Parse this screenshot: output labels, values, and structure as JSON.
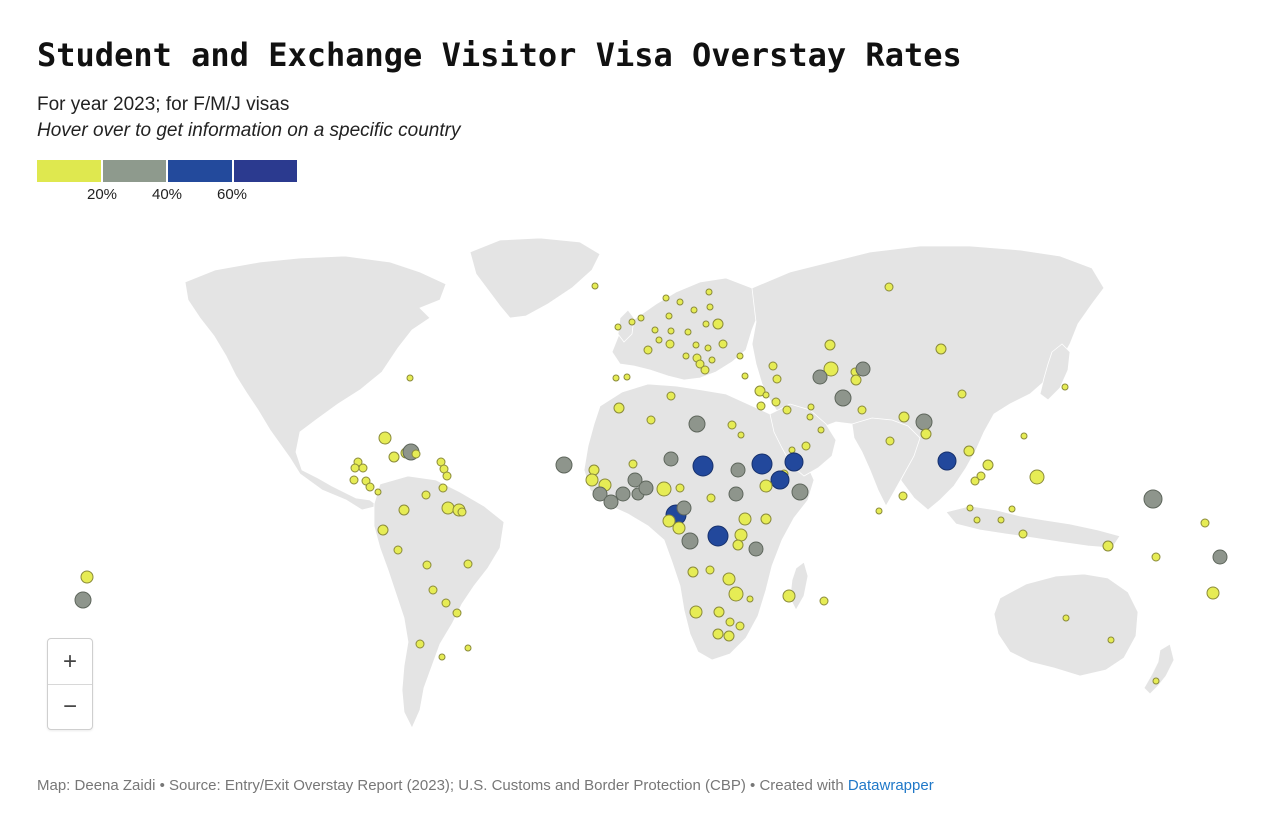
{
  "title": "Student and Exchange Visitor Visa Overstay Rates",
  "subtitle": "For year 2023; for F/M/J visas",
  "hint": "Hover over to get information on a specific country",
  "legend": {
    "colors": [
      "#dfe84f",
      "#8e9a8d",
      "#234a9c",
      "#2b3a8f"
    ],
    "ticks": [
      "20%",
      "40%",
      "60%"
    ]
  },
  "zoom": {
    "zoom_in_label": "+",
    "zoom_out_label": "−"
  },
  "footer": {
    "prefix": "Map: Deena Zaidi • Source: Entry/Exit Overstay Report (2023); U.S. Customs and Border Protection (CBP) • Created with ",
    "link_text": "Datawrapper"
  },
  "map": {
    "land_color": "#e4e4e4",
    "point_tiers": {
      "low": {
        "fill": "#e6ec55",
        "stroke": "#8a8a3a"
      },
      "mid": {
        "fill": "#8e958c",
        "stroke": "#5e665c"
      },
      "high": {
        "fill": "#22489c",
        "stroke": "#17316c"
      }
    }
  }
}
